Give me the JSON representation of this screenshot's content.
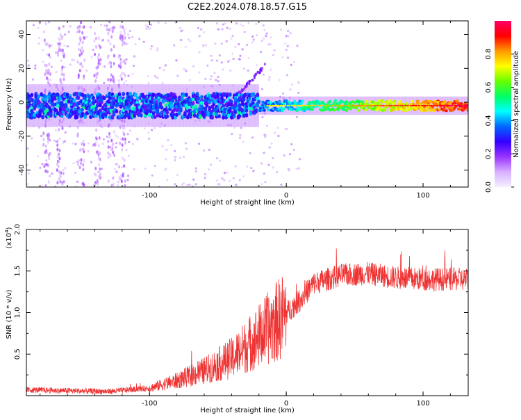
{
  "figure": {
    "title": "C2E2.2024.078.18.57.G15"
  },
  "chart_data": [
    {
      "type": "heatmap",
      "xlabel": "Height of straight line (km)",
      "ylabel": "Frequency (Hz)",
      "xlim": [
        -190,
        133
      ],
      "ylim": [
        -50,
        48
      ],
      "x_ticks": [
        -100,
        0,
        100
      ],
      "y_ticks": [
        -40,
        -20,
        0,
        20,
        40
      ],
      "colorbar": {
        "label": "Normalized spectral amplitude",
        "range": [
          0,
          1
        ],
        "ticks": [
          0.0,
          0.2,
          0.4,
          0.6,
          0.8
        ],
        "tick_labels": [
          "0.0",
          "0.2",
          "0.4",
          "0.6",
          "0.8"
        ],
        "colors": [
          "#f5f0ff",
          "#d8b0ff",
          "#9933ff",
          "#3300ff",
          "#0066ff",
          "#00ffff",
          "#00ff66",
          "#66ff00",
          "#ffff00",
          "#ff9900",
          "#ff0000",
          "#ff0066"
        ]
      },
      "description_band": {
        "center_hz": -2,
        "halfwidth_low_alt_hz": 7,
        "halfwidth_high_alt_hz": 3
      }
    },
    {
      "type": "line",
      "xlabel": "Height of straight line (km)",
      "ylabel": "SNR (10 * v/v)",
      "yscale_note": "(x10",
      "yscale_exp": "4",
      "xlim": [
        -190,
        133
      ],
      "ylim": [
        0,
        20000
      ],
      "x_ticks": [
        -100,
        0,
        100
      ],
      "y_ticks": [
        5000,
        10000,
        15000,
        20000
      ],
      "y_tick_labels": [
        "0.5",
        "1.0",
        "1.5",
        "2.0"
      ],
      "color": "#ee3333",
      "trend": {
        "x": [
          -190,
          -160,
          -130,
          -100,
          -80,
          -60,
          -40,
          -25,
          -10,
          0,
          10,
          20,
          40,
          60,
          80,
          100,
          120,
          133
        ],
        "y": [
          700,
          600,
          500,
          900,
          1800,
          3000,
          4500,
          6500,
          8500,
          10000,
          11500,
          13500,
          14500,
          14700,
          14200,
          14000,
          14000,
          14000
        ]
      }
    }
  ]
}
